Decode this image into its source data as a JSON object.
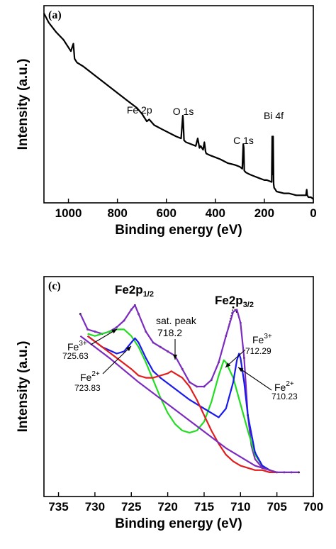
{
  "chart_data": [
    {
      "type": "line",
      "panel_label": "(a)",
      "xlabel": "Binding energy (eV)",
      "ylabel": "Intensity (a.u.)",
      "xlim": [
        1100,
        0
      ],
      "x_ticks": [
        1000,
        800,
        600,
        400,
        200,
        0
      ],
      "y_ticks_shown": false,
      "grid": false,
      "series": [
        {
          "color": "#000000",
          "x": [
            1100,
            1080,
            1050,
            1020,
            990,
            980,
            975,
            965,
            940,
            900,
            850,
            800,
            760,
            720,
            700,
            680,
            670,
            650,
            620,
            590,
            560,
            540,
            533,
            531,
            528,
            520,
            500,
            480,
            472,
            465,
            460,
            450,
            445,
            440,
            437,
            420,
            400,
            380,
            350,
            320,
            300,
            290,
            286,
            284,
            282,
            275,
            260,
            240,
            220,
            200,
            190,
            170,
            168,
            166,
            164,
            162,
            160,
            155,
            150,
            120,
            100,
            70,
            40,
            30,
            27,
            25,
            20,
            10,
            0
          ],
          "y": [
            1.0,
            0.95,
            0.9,
            0.86,
            0.8,
            0.84,
            0.76,
            0.74,
            0.72,
            0.68,
            0.63,
            0.58,
            0.54,
            0.5,
            0.47,
            0.43,
            0.44,
            0.41,
            0.39,
            0.37,
            0.35,
            0.34,
            0.46,
            0.42,
            0.33,
            0.32,
            0.31,
            0.3,
            0.34,
            0.29,
            0.3,
            0.28,
            0.32,
            0.27,
            0.26,
            0.25,
            0.24,
            0.23,
            0.21,
            0.2,
            0.19,
            0.18,
            0.31,
            0.29,
            0.17,
            0.16,
            0.15,
            0.14,
            0.13,
            0.12,
            0.12,
            0.11,
            0.35,
            0.15,
            0.35,
            0.1,
            0.08,
            0.07,
            0.06,
            0.05,
            0.05,
            0.04,
            0.04,
            0.04,
            0.07,
            0.04,
            0.03,
            0.03,
            0.02
          ]
        }
      ],
      "annotations": [
        {
          "text": "Fe 2p",
          "x": 710
        },
        {
          "text": "O 1s",
          "x": 531
        },
        {
          "text": "C 1s",
          "x": 285
        },
        {
          "text": "Bi 4f",
          "x": 162
        }
      ]
    },
    {
      "type": "line",
      "panel_label": "(c)",
      "xlabel": "Binding energy (eV)",
      "ylabel": "Intensity (a.u.)",
      "xlim": [
        737,
        700
      ],
      "x_ticks": [
        735,
        730,
        725,
        720,
        715,
        710,
        705,
        700
      ],
      "y_ticks_shown": false,
      "grid": false,
      "series": [
        {
          "color": "#000000",
          "marker": "dot",
          "x": [
            732,
            731,
            730,
            729,
            728,
            727,
            726,
            725,
            724.5,
            724,
            723,
            722,
            721,
            720,
            719,
            718,
            717,
            716,
            715,
            714,
            713,
            712,
            711,
            710.5,
            710,
            709.5,
            709,
            708,
            707,
            706,
            705,
            704,
            703,
            702
          ],
          "y": [
            0.78,
            0.71,
            0.7,
            0.69,
            0.7,
            0.72,
            0.75,
            0.8,
            0.82,
            0.78,
            0.7,
            0.65,
            0.63,
            0.61,
            0.59,
            0.53,
            0.47,
            0.45,
            0.45,
            0.48,
            0.56,
            0.68,
            0.81,
            0.79,
            0.74,
            0.58,
            0.32,
            0.15,
            0.08,
            0.07,
            0.06,
            0.06,
            0.06,
            0.06
          ]
        },
        {
          "color": "#7b2cbf",
          "x": [
            732,
            731,
            730,
            729,
            728,
            727,
            726,
            725,
            724.5,
            724,
            723,
            722,
            721,
            720,
            719,
            718,
            717,
            716,
            715,
            714,
            713,
            712,
            711,
            710.5,
            710,
            709.5,
            709,
            708.5,
            708,
            707,
            706,
            705,
            704,
            703,
            702
          ],
          "y": [
            0.78,
            0.71,
            0.7,
            0.69,
            0.7,
            0.72,
            0.75,
            0.8,
            0.82,
            0.78,
            0.7,
            0.65,
            0.63,
            0.61,
            0.59,
            0.53,
            0.47,
            0.45,
            0.45,
            0.48,
            0.56,
            0.68,
            0.79,
            0.8,
            0.74,
            0.58,
            0.32,
            0.18,
            0.12,
            0.08,
            0.07,
            0.06,
            0.06,
            0.06,
            0.06
          ]
        },
        {
          "color": "#22dd22",
          "x": [
            731,
            730,
            729,
            728,
            727,
            726,
            725,
            724,
            723,
            722,
            721,
            720,
            719,
            718,
            717,
            716,
            715,
            714,
            713,
            712.3,
            712,
            711,
            710,
            709,
            708,
            707,
            706,
            705
          ],
          "y": [
            0.69,
            0.68,
            0.69,
            0.7,
            0.71,
            0.71,
            0.68,
            0.63,
            0.56,
            0.48,
            0.4,
            0.33,
            0.28,
            0.25,
            0.24,
            0.25,
            0.29,
            0.38,
            0.5,
            0.57,
            0.56,
            0.49,
            0.37,
            0.25,
            0.14,
            0.09,
            0.07,
            0.06
          ]
        },
        {
          "color": "#1a1aee",
          "x": [
            731,
            729,
            727,
            726,
            725,
            724.5,
            724,
            723,
            722,
            721,
            719,
            717,
            715,
            713,
            712,
            711,
            710.5,
            710.2,
            710,
            709.5,
            709,
            708,
            707,
            706
          ],
          "y": [
            0.68,
            0.63,
            0.6,
            0.61,
            0.65,
            0.67,
            0.65,
            0.58,
            0.52,
            0.49,
            0.44,
            0.39,
            0.35,
            0.31,
            0.35,
            0.47,
            0.57,
            0.6,
            0.58,
            0.47,
            0.32,
            0.15,
            0.09,
            0.07
          ]
        },
        {
          "color": "#e11d1d",
          "x": [
            731,
            729,
            727,
            725,
            724,
            723,
            722,
            721,
            720,
            719.5,
            719,
            718,
            717,
            716,
            715,
            714,
            713,
            712,
            711,
            710,
            709,
            708,
            707,
            706,
            705
          ],
          "y": [
            0.68,
            0.63,
            0.58,
            0.53,
            0.5,
            0.49,
            0.49,
            0.5,
            0.51,
            0.52,
            0.51,
            0.49,
            0.45,
            0.39,
            0.32,
            0.25,
            0.19,
            0.14,
            0.11,
            0.09,
            0.08,
            0.07,
            0.07,
            0.06,
            0.06
          ]
        },
        {
          "color": "#7b2cbf",
          "name_hidden": "background",
          "x": [
            732,
            728,
            724,
            720,
            716,
            712,
            708,
            705
          ],
          "y": [
            0.68,
            0.58,
            0.47,
            0.37,
            0.27,
            0.17,
            0.09,
            0.06
          ]
        }
      ],
      "annotations": [
        {
          "text": "Fe2p",
          "sub": "1/2",
          "x": 725
        },
        {
          "text": "Fe2p",
          "sub": "3/2",
          "x": 710.5
        },
        {
          "text": "sat. peak",
          "x": 718.5
        },
        {
          "text": "718.2",
          "x": 718.2
        },
        {
          "text": "Fe",
          "sup": "3+",
          "value": "725.63"
        },
        {
          "text": "Fe",
          "sup": "2+",
          "value": "723.83"
        },
        {
          "text": "Fe",
          "sup": "3+",
          "value": "712.29"
        },
        {
          "text": "Fe",
          "sup": "2+",
          "value": "710.23"
        }
      ]
    }
  ]
}
